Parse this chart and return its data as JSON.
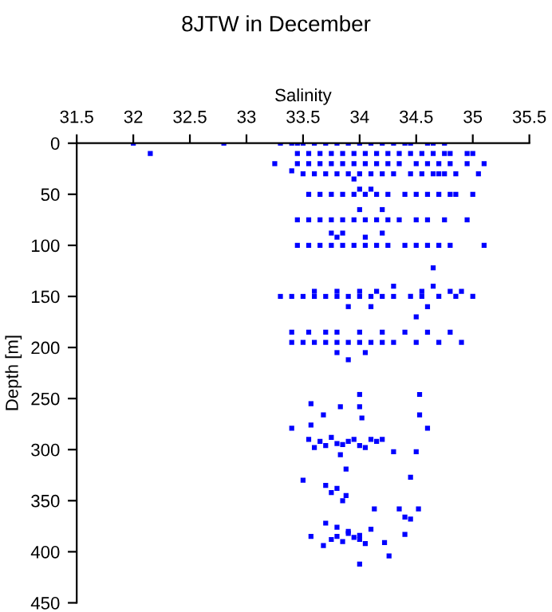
{
  "chart_data": {
    "type": "scatter",
    "title": "8JTW in December",
    "xlabel": "Salinity",
    "ylabel": "Depth [m]",
    "xlim": [
      31.5,
      35.5
    ],
    "xticks": [
      31.5,
      32,
      32.5,
      33,
      33.5,
      34,
      34.5,
      35,
      35.5
    ],
    "ylim": [
      450,
      0
    ],
    "yticks": [
      0,
      50,
      100,
      150,
      200,
      250,
      300,
      350,
      400,
      450
    ],
    "grid": false,
    "legend": false,
    "marker": "square",
    "series": [
      {
        "color": "#0000ff",
        "x": [
          32.0,
          32.8,
          33.3,
          33.4,
          33.45,
          33.5,
          33.6,
          33.7,
          33.8,
          33.9,
          34.0,
          34.1,
          34.2,
          34.3,
          34.4,
          34.45,
          34.6,
          34.65,
          34.75,
          32.15,
          33.45,
          33.55,
          33.65,
          33.75,
          33.85,
          33.95,
          34.05,
          34.15,
          34.25,
          34.35,
          34.45,
          34.55,
          34.65,
          34.75,
          34.8,
          34.95,
          35.0,
          33.25,
          33.45,
          33.55,
          33.65,
          33.75,
          33.85,
          33.95,
          34.05,
          34.15,
          34.25,
          34.35,
          34.5,
          34.6,
          34.7,
          34.8,
          34.95,
          35.1,
          33.4,
          33.5,
          33.6,
          33.7,
          33.8,
          33.9,
          34.0,
          34.1,
          34.2,
          34.3,
          34.45,
          34.55,
          34.65,
          34.7,
          34.75,
          34.85,
          35.05,
          33.95,
          34.0,
          34.1,
          33.55,
          33.65,
          33.75,
          33.85,
          33.95,
          34.05,
          34.15,
          34.25,
          34.4,
          34.5,
          34.6,
          34.7,
          34.8,
          34.85,
          35.0,
          34.0,
          34.2,
          33.45,
          33.55,
          33.65,
          33.75,
          33.85,
          33.95,
          34.05,
          34.15,
          34.25,
          34.35,
          34.5,
          34.6,
          34.75,
          34.95,
          33.75,
          33.85,
          34.2,
          33.8,
          34.05,
          33.45,
          33.55,
          33.65,
          33.75,
          33.85,
          33.95,
          34.05,
          34.15,
          34.25,
          34.4,
          34.5,
          34.6,
          34.7,
          34.8,
          35.1,
          34.65,
          34.3,
          34.65,
          33.3,
          33.4,
          33.5,
          33.6,
          33.7,
          33.8,
          33.9,
          34.0,
          34.1,
          34.2,
          34.3,
          34.45,
          34.55,
          34.7,
          34.85,
          35.0,
          33.6,
          33.8,
          34.0,
          34.15,
          34.55,
          34.8,
          34.9,
          33.9,
          34.1,
          34.6,
          34.5,
          33.4,
          33.55,
          33.7,
          33.8,
          34.0,
          34.2,
          34.4,
          34.6,
          34.8,
          33.4,
          33.5,
          33.6,
          33.7,
          33.8,
          33.9,
          34.0,
          34.1,
          34.2,
          34.3,
          34.5,
          34.7,
          34.9,
          33.8,
          34.05,
          33.9,
          34.0,
          34.53,
          33.57,
          33.83,
          34.0,
          33.68,
          34.02,
          34.53,
          33.4,
          33.57,
          34.6,
          33.55,
          33.65,
          33.75,
          33.85,
          33.95,
          34.05,
          34.15,
          34.2,
          33.6,
          33.7,
          33.8,
          33.9,
          34.0,
          34.1,
          34.3,
          34.5,
          33.83,
          33.88,
          33.5,
          34.45,
          33.7,
          33.75,
          33.8,
          33.85,
          33.88,
          34.13,
          34.35,
          34.52,
          34.4,
          34.45,
          33.7,
          33.8,
          33.9,
          34.0,
          34.1,
          33.75,
          33.85,
          33.95,
          34.05,
          33.68,
          33.8,
          33.9,
          34.0,
          33.57,
          34.4,
          34.22,
          34.26,
          34.0
        ],
        "values": [
          0,
          0,
          0,
          0,
          0,
          0,
          0,
          0,
          0,
          0,
          0,
          0,
          0,
          0,
          0,
          0,
          0,
          0,
          0,
          10,
          10,
          10,
          10,
          10,
          10,
          10,
          10,
          10,
          10,
          10,
          10,
          10,
          10,
          10,
          10,
          10,
          10,
          20,
          20,
          20,
          20,
          20,
          20,
          20,
          20,
          20,
          20,
          20,
          20,
          20,
          20,
          20,
          20,
          20,
          27,
          30,
          30,
          30,
          30,
          30,
          30,
          30,
          30,
          30,
          30,
          30,
          30,
          30,
          30,
          30,
          30,
          35,
          45,
          45,
          50,
          50,
          50,
          50,
          50,
          50,
          50,
          50,
          50,
          50,
          50,
          50,
          50,
          50,
          50,
          65,
          65,
          75,
          75,
          75,
          75,
          75,
          75,
          75,
          75,
          75,
          75,
          75,
          75,
          75,
          75,
          88,
          88,
          88,
          92,
          92,
          100,
          100,
          100,
          100,
          100,
          100,
          100,
          100,
          100,
          100,
          100,
          100,
          100,
          100,
          100,
          122,
          140,
          140,
          150,
          150,
          150,
          150,
          150,
          150,
          150,
          150,
          150,
          150,
          150,
          150,
          150,
          150,
          150,
          150,
          145,
          145,
          145,
          145,
          145,
          145,
          145,
          160,
          160,
          160,
          170,
          185,
          185,
          185,
          185,
          185,
          185,
          185,
          185,
          185,
          195,
          195,
          195,
          195,
          195,
          195,
          195,
          195,
          195,
          195,
          195,
          195,
          195,
          205,
          205,
          212,
          246,
          246,
          255,
          258,
          258,
          266,
          269,
          266,
          279,
          276,
          279,
          290,
          292,
          288,
          295,
          290,
          298,
          292,
          290,
          298,
          296,
          294,
          292,
          296,
          290,
          302,
          302,
          305,
          319,
          330,
          327,
          335,
          342,
          338,
          350,
          345,
          358,
          358,
          358,
          366,
          368,
          372,
          376,
          380,
          384,
          378,
          388,
          390,
          386,
          392,
          394,
          385,
          382,
          388,
          385,
          383,
          391,
          404,
          412
        ]
      }
    ]
  }
}
